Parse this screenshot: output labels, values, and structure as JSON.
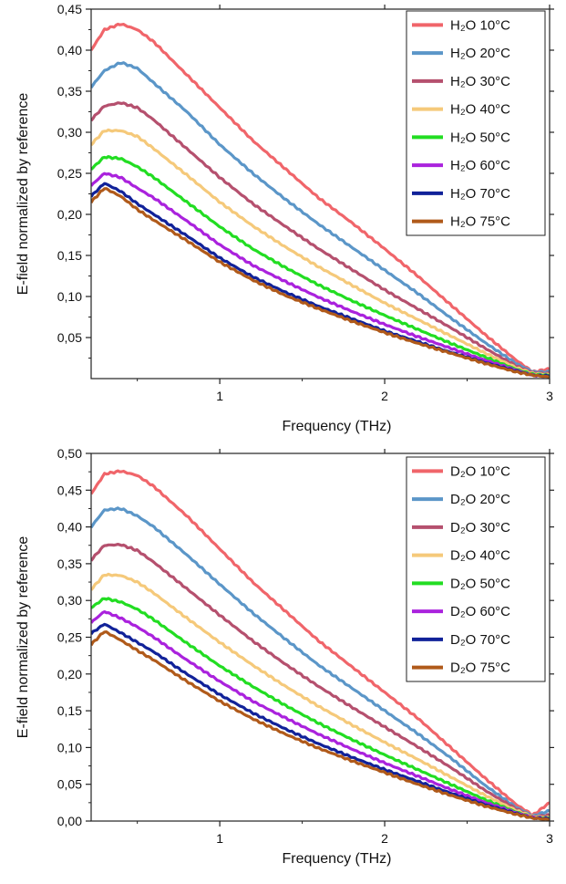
{
  "chart_data": [
    {
      "type": "line",
      "xlabel": "Frequency (THz)",
      "ylabel": "E-field normalized by reference",
      "xlim": [
        0.22,
        3.0
      ],
      "ylim": [
        0.0,
        0.45
      ],
      "xticks": [
        {
          "v": 1,
          "label": "1"
        },
        {
          "v": 2,
          "label": "2"
        },
        {
          "v": 3,
          "label": "3"
        }
      ],
      "yticks": [
        {
          "v": 0.05,
          "label": "0,05"
        },
        {
          "v": 0.1,
          "label": "0,10"
        },
        {
          "v": 0.15,
          "label": "0,15"
        },
        {
          "v": 0.2,
          "label": "0,20"
        },
        {
          "v": 0.25,
          "label": "0,25"
        },
        {
          "v": 0.3,
          "label": "0,30"
        },
        {
          "v": 0.35,
          "label": "0,35"
        },
        {
          "v": 0.4,
          "label": "0,40"
        },
        {
          "v": 0.45,
          "label": "0,45"
        }
      ],
      "legend_position": "top-right",
      "x": [
        0.22,
        0.3,
        0.4,
        0.5,
        0.6,
        0.8,
        1.0,
        1.2,
        1.4,
        1.6,
        1.8,
        2.0,
        2.2,
        2.4,
        2.6,
        2.8,
        2.9,
        3.0
      ],
      "series": [
        {
          "name": "H₂O 10°C",
          "color": "#f0656a",
          "values": [
            0.4,
            0.425,
            0.432,
            0.425,
            0.41,
            0.37,
            0.33,
            0.29,
            0.255,
            0.22,
            0.19,
            0.158,
            0.125,
            0.09,
            0.055,
            0.022,
            0.008,
            0.012
          ]
        },
        {
          "name": "H₂O 20°C",
          "color": "#5b96c8",
          "values": [
            0.355,
            0.375,
            0.385,
            0.378,
            0.36,
            0.325,
            0.285,
            0.25,
            0.218,
            0.188,
            0.16,
            0.132,
            0.104,
            0.074,
            0.045,
            0.018,
            0.008,
            0.008
          ]
        },
        {
          "name": "H₂O 30°C",
          "color": "#b5506e",
          "values": [
            0.315,
            0.332,
            0.336,
            0.33,
            0.315,
            0.28,
            0.245,
            0.213,
            0.185,
            0.158,
            0.133,
            0.108,
            0.085,
            0.062,
            0.038,
            0.015,
            0.007,
            0.006
          ]
        },
        {
          "name": "H₂O 40°C",
          "color": "#f5c97a",
          "values": [
            0.285,
            0.302,
            0.302,
            0.295,
            0.28,
            0.248,
            0.215,
            0.186,
            0.16,
            0.136,
            0.114,
            0.092,
            0.072,
            0.052,
            0.032,
            0.013,
            0.006,
            0.005
          ]
        },
        {
          "name": "H₂O 50°C",
          "color": "#22dd22",
          "values": [
            0.255,
            0.27,
            0.268,
            0.258,
            0.245,
            0.215,
            0.185,
            0.158,
            0.135,
            0.114,
            0.095,
            0.077,
            0.06,
            0.043,
            0.027,
            0.011,
            0.005,
            0.004
          ]
        },
        {
          "name": "H₂O 60°C",
          "color": "#aa22dd",
          "values": [
            0.235,
            0.25,
            0.245,
            0.232,
            0.22,
            0.192,
            0.163,
            0.138,
            0.118,
            0.099,
            0.082,
            0.066,
            0.051,
            0.037,
            0.023,
            0.01,
            0.004,
            0.003
          ]
        },
        {
          "name": "H₂O 70°C",
          "color": "#112299",
          "values": [
            0.222,
            0.238,
            0.228,
            0.213,
            0.2,
            0.174,
            0.147,
            0.124,
            0.105,
            0.088,
            0.073,
            0.058,
            0.045,
            0.032,
            0.02,
            0.009,
            0.004,
            0.003
          ]
        },
        {
          "name": "H₂O 75°C",
          "color": "#b05a1a",
          "values": [
            0.215,
            0.232,
            0.222,
            0.206,
            0.193,
            0.168,
            0.142,
            0.12,
            0.101,
            0.085,
            0.07,
            0.056,
            0.043,
            0.031,
            0.019,
            0.008,
            0.004,
            0.002
          ]
        }
      ]
    },
    {
      "type": "line",
      "xlabel": "Frequency (THz)",
      "ylabel": "E-field normalized by reference",
      "xlim": [
        0.22,
        3.0
      ],
      "ylim": [
        0.0,
        0.5
      ],
      "xticks": [
        {
          "v": 1,
          "label": "1"
        },
        {
          "v": 2,
          "label": "2"
        },
        {
          "v": 3,
          "label": "3"
        }
      ],
      "yticks": [
        {
          "v": 0.0,
          "label": "0,00"
        },
        {
          "v": 0.05,
          "label": "0,05"
        },
        {
          "v": 0.1,
          "label": "0,10"
        },
        {
          "v": 0.15,
          "label": "0,15"
        },
        {
          "v": 0.2,
          "label": "0,20"
        },
        {
          "v": 0.25,
          "label": "0,25"
        },
        {
          "v": 0.3,
          "label": "0,30"
        },
        {
          "v": 0.35,
          "label": "0,35"
        },
        {
          "v": 0.4,
          "label": "0,40"
        },
        {
          "v": 0.45,
          "label": "0,45"
        },
        {
          "v": 0.5,
          "label": "0,50"
        }
      ],
      "legend_position": "top-right",
      "x": [
        0.22,
        0.3,
        0.4,
        0.5,
        0.6,
        0.8,
        1.0,
        1.2,
        1.4,
        1.6,
        1.8,
        2.0,
        2.2,
        2.4,
        2.6,
        2.8,
        2.9,
        3.0
      ],
      "series": [
        {
          "name": "D₂O 10°C",
          "color": "#f0656a",
          "values": [
            0.445,
            0.472,
            0.476,
            0.47,
            0.455,
            0.415,
            0.37,
            0.325,
            0.285,
            0.245,
            0.21,
            0.175,
            0.14,
            0.1,
            0.06,
            0.022,
            0.008,
            0.025
          ]
        },
        {
          "name": "D₂O 20°C",
          "color": "#5b96c8",
          "values": [
            0.4,
            0.423,
            0.425,
            0.415,
            0.4,
            0.362,
            0.322,
            0.283,
            0.247,
            0.212,
            0.181,
            0.15,
            0.119,
            0.086,
            0.05,
            0.018,
            0.007,
            0.014
          ]
        },
        {
          "name": "D₂O 30°C",
          "color": "#b5506e",
          "values": [
            0.355,
            0.375,
            0.376,
            0.368,
            0.352,
            0.316,
            0.28,
            0.245,
            0.213,
            0.183,
            0.155,
            0.128,
            0.101,
            0.073,
            0.043,
            0.016,
            0.006,
            0.008
          ]
        },
        {
          "name": "D₂O 40°C",
          "color": "#f5c97a",
          "values": [
            0.315,
            0.335,
            0.334,
            0.325,
            0.31,
            0.276,
            0.243,
            0.212,
            0.183,
            0.156,
            0.131,
            0.107,
            0.084,
            0.06,
            0.036,
            0.014,
            0.006,
            0.005
          ]
        },
        {
          "name": "D₂O 50°C",
          "color": "#22dd22",
          "values": [
            0.29,
            0.303,
            0.298,
            0.288,
            0.274,
            0.242,
            0.211,
            0.183,
            0.157,
            0.133,
            0.111,
            0.09,
            0.07,
            0.05,
            0.03,
            0.012,
            0.005,
            0.004
          ]
        },
        {
          "name": "D₂O 60°C",
          "color": "#aa22dd",
          "values": [
            0.27,
            0.285,
            0.276,
            0.264,
            0.25,
            0.219,
            0.19,
            0.163,
            0.14,
            0.118,
            0.098,
            0.079,
            0.061,
            0.043,
            0.026,
            0.011,
            0.005,
            0.003
          ]
        },
        {
          "name": "D₂O 70°C",
          "color": "#112299",
          "values": [
            0.255,
            0.268,
            0.256,
            0.243,
            0.23,
            0.2,
            0.172,
            0.147,
            0.125,
            0.105,
            0.087,
            0.07,
            0.054,
            0.038,
            0.023,
            0.01,
            0.004,
            0.003
          ]
        },
        {
          "name": "D₂O 75°C",
          "color": "#b05a1a",
          "values": [
            0.24,
            0.258,
            0.246,
            0.232,
            0.219,
            0.19,
            0.163,
            0.139,
            0.118,
            0.099,
            0.082,
            0.066,
            0.05,
            0.035,
            0.021,
            0.009,
            0.004,
            0.002
          ]
        }
      ]
    }
  ]
}
